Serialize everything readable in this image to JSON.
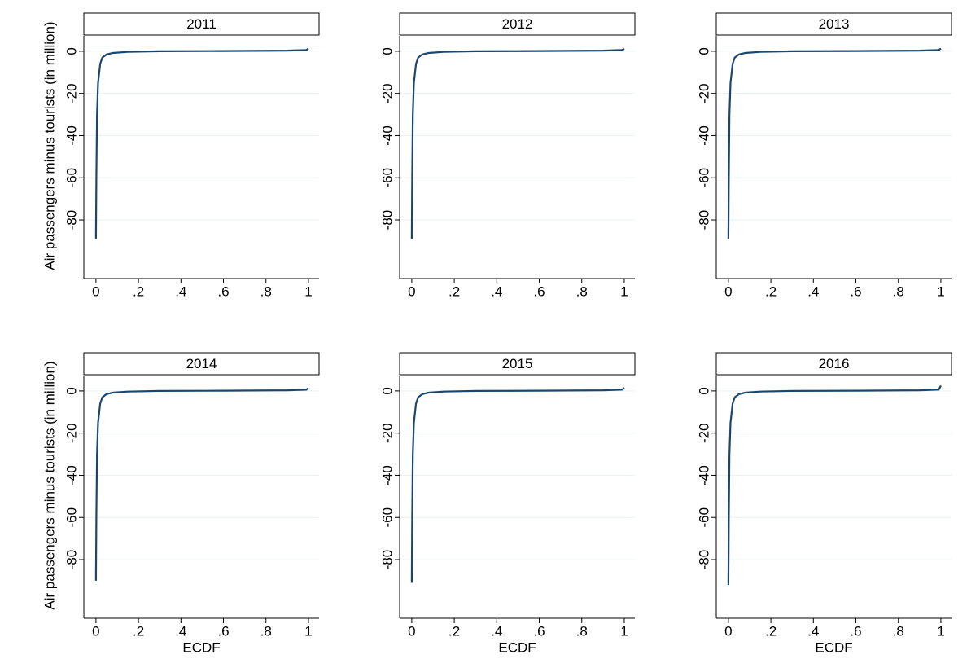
{
  "chart_data": [
    {
      "type": "line",
      "title": "2011",
      "ylabel": "Air passengers minus tourists (in million)",
      "color": "#1a476f",
      "grid": true,
      "x": [
        0,
        0.002,
        0.005,
        0.01,
        0.02,
        0.03,
        0.05,
        0.08,
        0.15,
        0.3,
        0.6,
        0.9,
        0.99,
        1
      ],
      "values": [
        -89,
        -60,
        -30,
        -15,
        -6,
        -3,
        -1.5,
        -0.8,
        -0.3,
        0,
        0.1,
        0.3,
        0.6,
        1.3
      ],
      "xlim": [
        -0.057,
        1.05
      ],
      "xticks": [
        0,
        {
          "value": 0.2,
          "label": ".2"
        },
        {
          "value": 0.4,
          "label": ".4"
        },
        {
          "value": 0.6,
          "label": ".6"
        },
        {
          "value": 0.8,
          "label": ".8"
        },
        1
      ],
      "ylim": [
        -107.8,
        7.3
      ],
      "yticks": [
        0,
        -20,
        -40,
        -60,
        -80
      ]
    },
    {
      "type": "line",
      "title": "2012",
      "color": "#1a476f",
      "grid": true,
      "x": [
        0,
        0.002,
        0.005,
        0.01,
        0.02,
        0.03,
        0.05,
        0.08,
        0.15,
        0.3,
        0.6,
        0.9,
        0.99,
        1
      ],
      "values": [
        -89,
        -60,
        -30,
        -15,
        -6,
        -3,
        -1.5,
        -0.8,
        -0.3,
        0,
        0.1,
        0.3,
        0.6,
        1.2
      ],
      "xlim": [
        -0.057,
        1.05
      ],
      "xticks": [
        0,
        {
          "value": 0.2,
          "label": ".2"
        },
        {
          "value": 0.4,
          "label": ".4"
        },
        {
          "value": 0.6,
          "label": ".6"
        },
        {
          "value": 0.8,
          "label": ".8"
        },
        1
      ],
      "ylim": [
        -107.8,
        7.3
      ],
      "yticks": [
        0,
        -20,
        -40,
        -60,
        -80
      ]
    },
    {
      "type": "line",
      "title": "2013",
      "color": "#1a476f",
      "grid": true,
      "x": [
        0,
        0.002,
        0.005,
        0.01,
        0.02,
        0.03,
        0.05,
        0.08,
        0.15,
        0.3,
        0.6,
        0.9,
        0.99,
        1
      ],
      "values": [
        -89,
        -60,
        -30,
        -15,
        -6,
        -3,
        -1.5,
        -0.8,
        -0.3,
        0,
        0.1,
        0.3,
        0.6,
        1.3
      ],
      "xlim": [
        -0.057,
        1.05
      ],
      "xticks": [
        0,
        {
          "value": 0.2,
          "label": ".2"
        },
        {
          "value": 0.4,
          "label": ".4"
        },
        {
          "value": 0.6,
          "label": ".6"
        },
        {
          "value": 0.8,
          "label": ".8"
        },
        1
      ],
      "ylim": [
        -107.8,
        7.3
      ],
      "yticks": [
        0,
        -20,
        -40,
        -60,
        -80
      ]
    },
    {
      "type": "line",
      "title": "2014",
      "ylabel": "Air passengers minus tourists (in million)",
      "xlabel": "ECDF",
      "color": "#1a476f",
      "grid": true,
      "x": [
        0,
        0.002,
        0.005,
        0.01,
        0.02,
        0.03,
        0.05,
        0.08,
        0.15,
        0.3,
        0.6,
        0.9,
        0.99,
        1
      ],
      "values": [
        -90,
        -60,
        -30,
        -15,
        -6,
        -3,
        -1.5,
        -0.8,
        -0.3,
        0,
        0.1,
        0.3,
        0.6,
        1.4
      ],
      "xlim": [
        -0.057,
        1.05
      ],
      "xticks": [
        0,
        {
          "value": 0.2,
          "label": ".2"
        },
        {
          "value": 0.4,
          "label": ".4"
        },
        {
          "value": 0.6,
          "label": ".6"
        },
        {
          "value": 0.8,
          "label": ".8"
        },
        1
      ],
      "ylim": [
        -107.8,
        7.3
      ],
      "yticks": [
        0,
        -20,
        -40,
        -60,
        -80
      ]
    },
    {
      "type": "line",
      "title": "2015",
      "xlabel": "ECDF",
      "color": "#1a476f",
      "grid": true,
      "x": [
        0,
        0.002,
        0.005,
        0.01,
        0.02,
        0.03,
        0.05,
        0.08,
        0.15,
        0.3,
        0.6,
        0.9,
        0.99,
        1
      ],
      "values": [
        -91,
        -60,
        -30,
        -15,
        -6,
        -3,
        -1.5,
        -0.8,
        -0.3,
        0,
        0.1,
        0.3,
        0.6,
        1.5
      ],
      "xlim": [
        -0.057,
        1.05
      ],
      "xticks": [
        0,
        {
          "value": 0.2,
          "label": ".2"
        },
        {
          "value": 0.4,
          "label": ".4"
        },
        {
          "value": 0.6,
          "label": ".6"
        },
        {
          "value": 0.8,
          "label": ".8"
        },
        1
      ],
      "ylim": [
        -107.8,
        7.3
      ],
      "yticks": [
        0,
        -20,
        -40,
        -60,
        -80
      ]
    },
    {
      "type": "line",
      "title": "2016",
      "xlabel": "ECDF",
      "color": "#1a476f",
      "grid": true,
      "x": [
        0,
        0.002,
        0.005,
        0.01,
        0.02,
        0.03,
        0.05,
        0.08,
        0.15,
        0.3,
        0.6,
        0.9,
        0.99,
        1
      ],
      "values": [
        -92,
        -60,
        -30,
        -15,
        -6,
        -3,
        -1.5,
        -0.8,
        -0.3,
        0,
        0.1,
        0.3,
        0.6,
        2.5
      ],
      "xlim": [
        -0.057,
        1.05
      ],
      "xticks": [
        0,
        {
          "value": 0.2,
          "label": ".2"
        },
        {
          "value": 0.4,
          "label": ".4"
        },
        {
          "value": 0.6,
          "label": ".6"
        },
        {
          "value": 0.8,
          "label": ".8"
        },
        1
      ],
      "ylim": [
        -107.8,
        7.3
      ],
      "yticks": [
        0,
        -20,
        -40,
        -60,
        -80
      ]
    }
  ]
}
